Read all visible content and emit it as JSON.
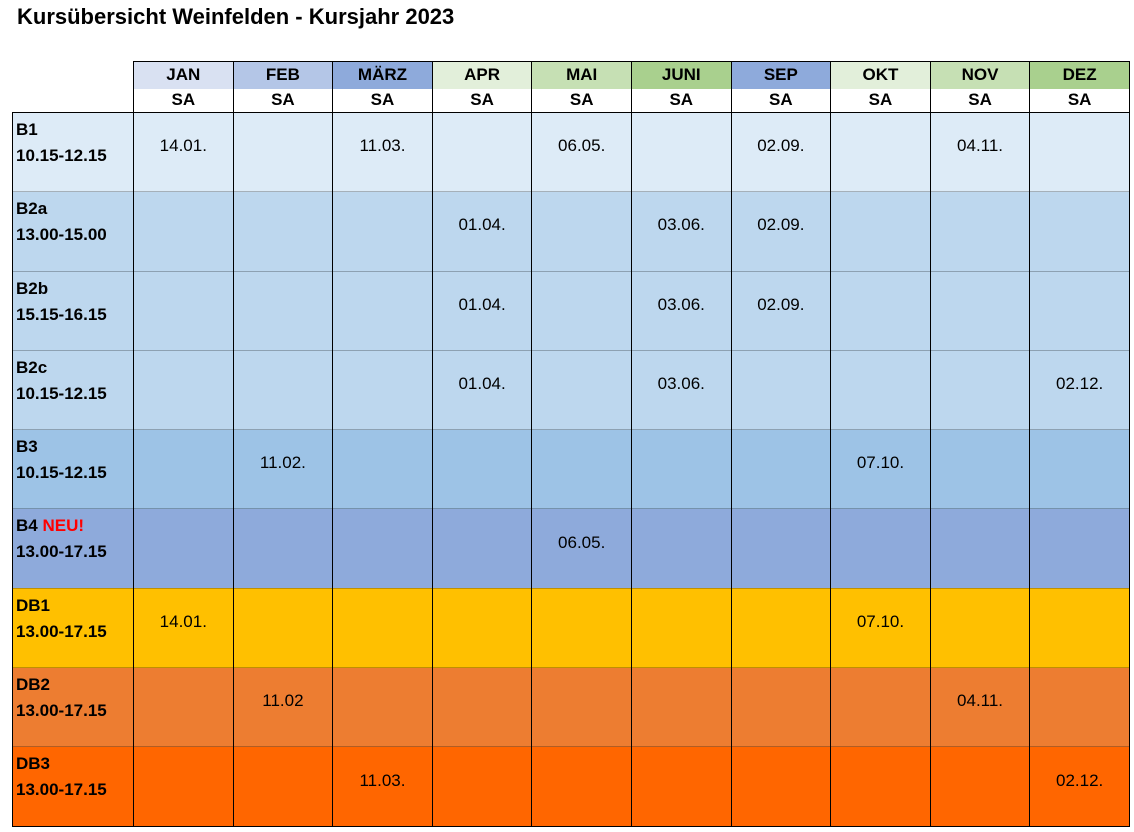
{
  "title": "Kursübersicht Weinfelden - Kursjahr 2023",
  "months": [
    {
      "label": "JAN",
      "day": "SA",
      "color": "#d9e1f2"
    },
    {
      "label": "FEB",
      "day": "SA",
      "color": "#b4c6e7"
    },
    {
      "label": "MÄRZ",
      "day": "SA",
      "color": "#8eaadb"
    },
    {
      "label": "APR",
      "day": "SA",
      "color": "#e2efda"
    },
    {
      "label": "MAI",
      "day": "SA",
      "color": "#c6e0b4"
    },
    {
      "label": "JUNI",
      "day": "SA",
      "color": "#a9d08e"
    },
    {
      "label": "SEP",
      "day": "SA",
      "color": "#8eaadb"
    },
    {
      "label": "OKT",
      "day": "SA",
      "color": "#e2efda"
    },
    {
      "label": "NOV",
      "day": "SA",
      "color": "#c6e0b4"
    },
    {
      "label": "DEZ",
      "day": "SA",
      "color": "#a9d08e"
    }
  ],
  "courses": [
    {
      "name": "B1",
      "tag": "",
      "time": "10.15-12.15",
      "color": "#ddebf7",
      "dates": [
        "14.01.",
        "",
        "11.03.",
        "",
        "06.05.",
        "",
        "02.09.",
        "",
        "04.11.",
        ""
      ]
    },
    {
      "name": "B2a",
      "tag": "",
      "time": "13.00-15.00",
      "color": "#bdd7ee",
      "dates": [
        "",
        "",
        "",
        "01.04.",
        "",
        "03.06.",
        "02.09.",
        "",
        "",
        ""
      ]
    },
    {
      "name": "B2b",
      "tag": "",
      "time": "15.15-16.15",
      "color": "#bdd7ee",
      "dates": [
        "",
        "",
        "",
        "01.04.",
        "",
        "03.06.",
        "02.09.",
        "",
        "",
        ""
      ]
    },
    {
      "name": "B2c",
      "tag": "",
      "time": "10.15-12.15",
      "color": "#bdd7ee",
      "dates": [
        "",
        "",
        "",
        "01.04.",
        "",
        "03.06.",
        "",
        "",
        "",
        "02.12."
      ]
    },
    {
      "name": "B3",
      "tag": "",
      "time": "10.15-12.15",
      "color": "#9dc3e6",
      "dates": [
        "",
        "11.02.",
        "",
        "",
        "",
        "",
        "",
        "07.10.",
        "",
        ""
      ]
    },
    {
      "name": "B4",
      "tag": "NEU!",
      "time": "13.00-17.15",
      "color": "#8eaadb",
      "dates": [
        "",
        "",
        "",
        "",
        "06.05.",
        "",
        "",
        "",
        "",
        ""
      ]
    },
    {
      "name": "DB1",
      "tag": "",
      "time": "13.00-17.15",
      "color": "#ffc000",
      "dates": [
        "14.01.",
        "",
        "",
        "",
        "",
        "",
        "",
        "07.10.",
        "",
        ""
      ]
    },
    {
      "name": "DB2",
      "tag": "",
      "time": "13.00-17.15",
      "color": "#ed7d31",
      "dates": [
        "",
        "11.02",
        "",
        "",
        "",
        "",
        "",
        "",
        "04.11.",
        ""
      ]
    },
    {
      "name": "DB3",
      "tag": "",
      "time": "13.00-17.15",
      "color": "#ff6600",
      "dates": [
        "",
        "",
        "11.03.",
        "",
        "",
        "",
        "",
        "",
        "",
        "02.12."
      ]
    }
  ]
}
